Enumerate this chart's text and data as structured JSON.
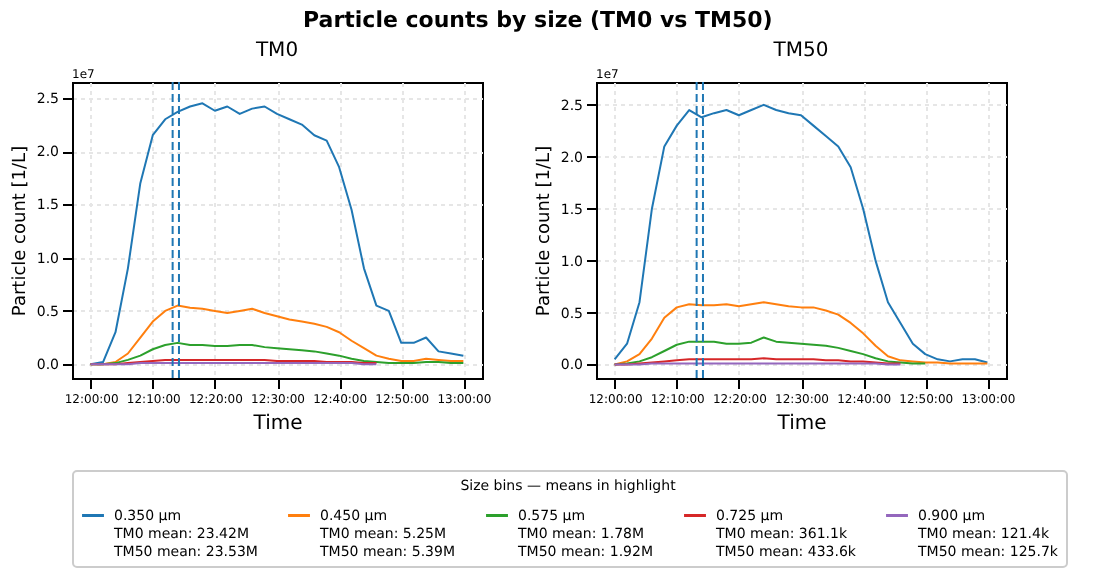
{
  "chart_data": [
    {
      "type": "line",
      "title": "TM0",
      "xlabel": "Time",
      "ylabel": "Particle count [1/L]",
      "legend_title": "Size bins — means in highlight",
      "legend": "bottom",
      "grid": true,
      "annotations": [
        "Particle counts by size (TM0 vs TM50)",
        "1e7"
      ],
      "xlim": [
        11.95,
        13.05
      ],
      "ylim": [
        -0.13,
        2.65
      ],
      "xticks": [
        {
          "value": 12,
          "label": "12:00:00"
        },
        {
          "value": 12.1667,
          "label": "12:10:00"
        },
        {
          "value": 12.3333,
          "label": "12:20:00"
        },
        {
          "value": 12.5,
          "label": "12:30:00"
        },
        {
          "value": 12.6667,
          "label": "12:40:00"
        },
        {
          "value": 12.8333,
          "label": "12:50:00"
        },
        {
          "value": 13,
          "label": "13:00:00"
        }
      ],
      "yticks": [
        {
          "value": 0,
          "label": "0.0"
        },
        0.5,
        {
          "value": 1,
          "label": "1.0"
        },
        1.5,
        {
          "value": 2,
          "label": "2.0"
        },
        2.5
      ],
      "x": [
        12,
        12.0333,
        12.0667,
        12.1,
        12.1333,
        12.1667,
        12.2,
        12.2333,
        12.2667,
        12.3,
        12.3333,
        12.3667,
        12.4,
        12.4333,
        12.4667,
        12.5,
        12.5333,
        12.5667,
        12.6,
        12.6333,
        12.6667,
        12.7,
        12.7333,
        12.7667,
        12.8,
        12.8333,
        12.8667,
        12.9,
        12.9333,
        12.9667,
        13
      ],
      "ref_lines": [
        {
          "axis": "x",
          "value": 12.22,
          "color": "#1f77b4",
          "line_style": "dashed"
        },
        {
          "axis": "x",
          "value": 12.237,
          "color": "#1f77b4",
          "line_style": "dashed"
        }
      ],
      "series": [
        {
          "name": "0.350 µm\nTM0 mean: 23.42M\nTM50 mean: 23.53M",
          "color": "#1f77b4",
          "values": [
            0,
            0.02,
            0.3,
            0.9,
            1.7,
            2.15,
            2.3,
            2.37,
            2.42,
            2.45,
            2.38,
            2.42,
            2.35,
            2.4,
            2.42,
            2.35,
            2.3,
            2.25,
            2.15,
            2.1,
            1.85,
            1.45,
            0.9,
            0.55,
            0.5,
            0.2,
            0.2,
            0.25,
            0.12,
            0.1,
            0.08
          ]
        },
        {
          "name": "0.450 µm\nTM0 mean: 5.25M\nTM50 mean: 5.39M",
          "color": "#ff7f0e",
          "values": [
            0,
            0,
            0.02,
            0.1,
            0.25,
            0.4,
            0.5,
            0.55,
            0.53,
            0.52,
            0.5,
            0.48,
            0.5,
            0.52,
            0.48,
            0.45,
            0.42,
            0.4,
            0.38,
            0.35,
            0.3,
            0.22,
            0.15,
            0.08,
            0.05,
            0.03,
            0.03,
            0.05,
            0.04,
            0.03,
            0.03
          ]
        },
        {
          "name": "0.575 µm\nTM0 mean: 1.78M\nTM50 mean: 1.92M",
          "color": "#2ca02c",
          "values": [
            0,
            0,
            0.01,
            0.04,
            0.08,
            0.14,
            0.18,
            0.2,
            0.18,
            0.18,
            0.17,
            0.17,
            0.18,
            0.18,
            0.16,
            0.15,
            0.14,
            0.13,
            0.12,
            0.1,
            0.08,
            0.05,
            0.03,
            0.02,
            0.01,
            0.01,
            0.01,
            0.02,
            0.02,
            0.01,
            0.01
          ]
        },
        {
          "name": "0.725 µm\nTM0 mean: 361.1k\nTM50 mean: 433.6k",
          "color": "#d62728",
          "values": [
            0,
            0,
            0,
            0.01,
            0.02,
            0.03,
            0.04,
            0.04,
            0.04,
            0.04,
            0.04,
            0.04,
            0.04,
            0.04,
            0.04,
            0.03,
            0.03,
            0.03,
            0.03,
            0.02,
            0.02,
            0.02,
            0.01,
            0.01,
            null,
            null,
            null,
            null,
            null,
            null,
            null
          ]
        },
        {
          "name": "0.900 µm\nTM0 mean: 121.4k\nTM50 mean: 125.7k",
          "color": "#9467bd",
          "values": [
            0,
            0,
            0,
            0,
            0.01,
            0.01,
            0.01,
            0.01,
            0.01,
            0.01,
            0.01,
            0.01,
            0.01,
            0.01,
            0.01,
            0.01,
            0.01,
            0.01,
            0.01,
            0.01,
            0.01,
            0.01,
            0,
            0,
            null,
            null,
            null,
            null,
            null,
            null,
            null
          ]
        }
      ]
    },
    {
      "type": "line",
      "title": "TM50",
      "xlabel": "Time",
      "ylabel": "Particle count [1/L]",
      "grid": true,
      "annotations": [
        "1e7"
      ],
      "xlim": [
        11.95,
        13.05
      ],
      "ylim": [
        -0.13,
        2.72
      ],
      "xticks": [
        {
          "value": 12,
          "label": "12:00:00"
        },
        {
          "value": 12.1667,
          "label": "12:10:00"
        },
        {
          "value": 12.3333,
          "label": "12:20:00"
        },
        {
          "value": 12.5,
          "label": "12:30:00"
        },
        {
          "value": 12.6667,
          "label": "12:40:00"
        },
        {
          "value": 12.8333,
          "label": "12:50:00"
        },
        {
          "value": 13,
          "label": "13:00:00"
        }
      ],
      "yticks": [
        {
          "value": 0,
          "label": "0.0"
        },
        0.5,
        {
          "value": 1,
          "label": "1.0"
        },
        1.5,
        {
          "value": 2,
          "label": "2.0"
        },
        2.5
      ],
      "x": [
        12,
        12.0333,
        12.0667,
        12.1,
        12.1333,
        12.1667,
        12.2,
        12.2333,
        12.2667,
        12.3,
        12.3333,
        12.3667,
        12.4,
        12.4333,
        12.4667,
        12.5,
        12.5333,
        12.5667,
        12.6,
        12.6333,
        12.6667,
        12.7,
        12.7333,
        12.7667,
        12.8,
        12.8333,
        12.8667,
        12.9,
        12.9333,
        12.9667,
        13
      ],
      "ref_lines": [
        {
          "axis": "x",
          "value": 12.22,
          "color": "#1f77b4",
          "line_style": "dashed"
        },
        {
          "axis": "x",
          "value": 12.237,
          "color": "#1f77b4",
          "line_style": "dashed"
        }
      ],
      "series": [
        {
          "name": "0.350 µm\nTM0 mean: 23.42M\nTM50 mean: 23.53M",
          "color": "#1f77b4",
          "values": [
            0.05,
            0.2,
            0.6,
            1.5,
            2.1,
            2.3,
            2.45,
            2.38,
            2.42,
            2.45,
            2.4,
            2.45,
            2.5,
            2.45,
            2.42,
            2.4,
            2.3,
            2.2,
            2.1,
            1.9,
            1.5,
            1.0,
            0.6,
            0.4,
            0.2,
            0.1,
            0.05,
            0.03,
            0.05,
            0.05,
            0.02
          ]
        },
        {
          "name": "0.450 µm\nTM0 mean: 5.25M\nTM50 mean: 5.39M",
          "color": "#ff7f0e",
          "values": [
            0,
            0.03,
            0.1,
            0.25,
            0.45,
            0.55,
            0.58,
            0.57,
            0.57,
            0.58,
            0.56,
            0.58,
            0.6,
            0.58,
            0.56,
            0.55,
            0.55,
            0.52,
            0.48,
            0.4,
            0.3,
            0.18,
            0.08,
            0.04,
            0.03,
            0.02,
            0.02,
            0.01,
            0.01,
            0.01,
            0.01
          ]
        },
        {
          "name": "0.575 µm\nTM0 mean: 1.78M\nTM50 mean: 1.92M",
          "color": "#2ca02c",
          "values": [
            0,
            0.01,
            0.03,
            0.07,
            0.13,
            0.19,
            0.22,
            0.22,
            0.22,
            0.2,
            0.2,
            0.21,
            0.26,
            0.22,
            0.21,
            0.2,
            0.19,
            0.18,
            0.16,
            0.13,
            0.1,
            0.06,
            0.03,
            0.02,
            0.01,
            0.01,
            null,
            null,
            null,
            null,
            null
          ]
        },
        {
          "name": "0.725 µm\nTM0 mean: 361.1k\nTM50 mean: 433.6k",
          "color": "#d62728",
          "values": [
            0,
            0,
            0.01,
            0.02,
            0.03,
            0.04,
            0.05,
            0.05,
            0.05,
            0.05,
            0.05,
            0.05,
            0.06,
            0.05,
            0.05,
            0.05,
            0.05,
            0.04,
            0.04,
            0.03,
            0.03,
            0.02,
            0.01,
            0.01,
            null,
            null,
            null,
            null,
            null,
            null,
            null
          ]
        },
        {
          "name": "0.900 µm\nTM0 mean: 121.4k\nTM50 mean: 125.7k",
          "color": "#9467bd",
          "values": [
            0,
            0,
            0,
            0.01,
            0.01,
            0.01,
            0.01,
            0.01,
            0.01,
            0.01,
            0.01,
            0.01,
            0.01,
            0.01,
            0.01,
            0.01,
            0.01,
            0.01,
            0.01,
            0.01,
            0.01,
            0.01,
            0,
            0,
            null,
            null,
            null,
            null,
            null,
            null,
            null
          ]
        }
      ]
    }
  ]
}
